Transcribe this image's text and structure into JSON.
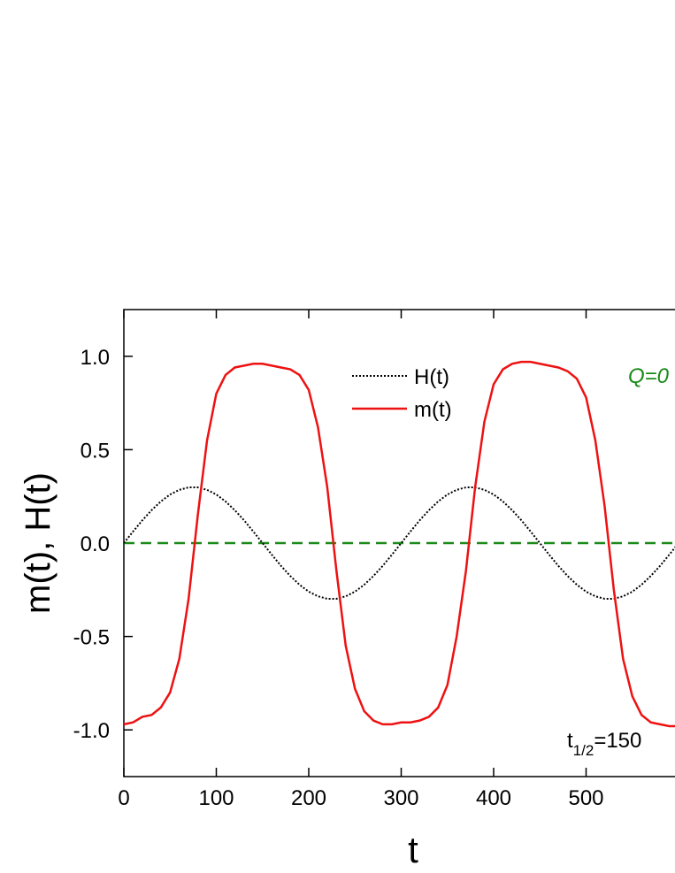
{
  "chart_data": {
    "type": "line",
    "x_label": "t",
    "y_label": "m(t), H(t)",
    "xlim": [
      0,
      600
    ],
    "ylim": [
      -1.25,
      1.25
    ],
    "xticks": [
      0,
      100,
      200,
      300,
      400,
      500
    ],
    "yticks": [
      {
        "value": 1,
        "label": "1.0"
      },
      {
        "value": 0.5,
        "label": "0.5"
      },
      {
        "value": 0,
        "label": "0.0"
      },
      {
        "value": -0.5,
        "label": "-0.5"
      },
      {
        "value": -1,
        "label": "-1.0"
      }
    ],
    "x": [
      0,
      10,
      20,
      30,
      40,
      50,
      60,
      70,
      80,
      90,
      100,
      110,
      120,
      130,
      140,
      150,
      160,
      170,
      180,
      190,
      200,
      210,
      220,
      230,
      240,
      250,
      260,
      270,
      280,
      290,
      300,
      310,
      320,
      330,
      340,
      350,
      360,
      370,
      380,
      390,
      400,
      410,
      420,
      430,
      440,
      450,
      460,
      470,
      480,
      490,
      500,
      510,
      520,
      530,
      540,
      550,
      560,
      570,
      580,
      590,
      600
    ],
    "series": [
      {
        "name": "H(t)",
        "color": "#000000",
        "style": "dotted",
        "values": [
          0,
          0.062,
          0.122,
          0.176,
          0.223,
          0.26,
          0.285,
          0.298,
          0.298,
          0.285,
          0.26,
          0.223,
          0.176,
          0.122,
          0.062,
          0,
          -0.062,
          -0.122,
          -0.176,
          -0.223,
          -0.26,
          -0.285,
          -0.298,
          -0.298,
          -0.285,
          -0.26,
          -0.223,
          -0.176,
          -0.122,
          -0.062,
          0,
          0.062,
          0.122,
          0.176,
          0.223,
          0.26,
          0.285,
          0.298,
          0.298,
          0.285,
          0.26,
          0.223,
          0.176,
          0.122,
          0.062,
          0,
          -0.062,
          -0.122,
          -0.176,
          -0.223,
          -0.26,
          -0.285,
          -0.298,
          -0.298,
          -0.285,
          -0.26,
          -0.223,
          -0.176,
          -0.122,
          -0.062,
          0
        ]
      },
      {
        "name": "m(t)",
        "color": "#ee1111",
        "style": "solid",
        "values": [
          -0.97,
          -0.96,
          -0.93,
          -0.92,
          -0.88,
          -0.8,
          -0.62,
          -0.3,
          0.15,
          0.55,
          0.8,
          0.9,
          0.94,
          0.95,
          0.96,
          0.96,
          0.95,
          0.94,
          0.93,
          0.9,
          0.82,
          0.62,
          0.3,
          -0.15,
          -0.55,
          -0.78,
          -0.9,
          -0.95,
          -0.97,
          -0.97,
          -0.96,
          -0.96,
          -0.95,
          -0.93,
          -0.88,
          -0.76,
          -0.5,
          -0.15,
          0.3,
          0.65,
          0.85,
          0.93,
          0.96,
          0.97,
          0.97,
          0.96,
          0.95,
          0.94,
          0.92,
          0.88,
          0.78,
          0.55,
          0.2,
          -0.25,
          -0.62,
          -0.82,
          -0.92,
          -0.96,
          -0.97,
          -0.98,
          -0.98
        ]
      }
    ],
    "reference_line": {
      "y": 0,
      "color": "#1a8a1a"
    },
    "annotation_q": "Q=0",
    "annotation_t_half": {
      "symbol": "t",
      "subscript": "1/2",
      "text": "=150"
    }
  }
}
